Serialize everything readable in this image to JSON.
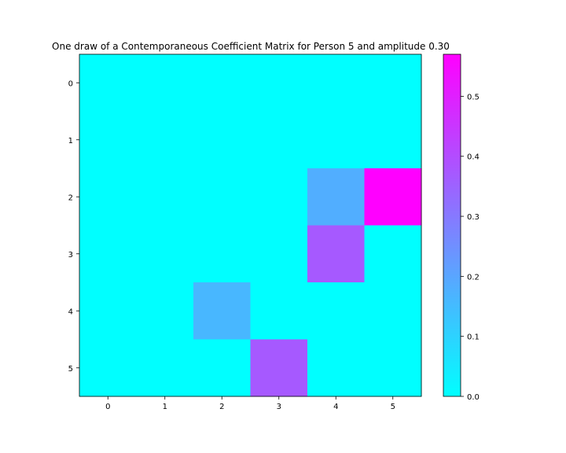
{
  "chart_data": {
    "type": "heatmap",
    "title": "One draw of a Contemporaneous Coefficient Matrix for Person 5 and amplitude 0.30",
    "xlabel": "",
    "ylabel": "",
    "x_categories": [
      "0",
      "1",
      "2",
      "3",
      "4",
      "5"
    ],
    "y_categories": [
      "0",
      "1",
      "2",
      "3",
      "4",
      "5"
    ],
    "values": [
      [
        0,
        0,
        0,
        0,
        0,
        0
      ],
      [
        0,
        0,
        0,
        0,
        0,
        0
      ],
      [
        0,
        0,
        0,
        0,
        0.18,
        0.57
      ],
      [
        0,
        0,
        0,
        0,
        0.37,
        0
      ],
      [
        0,
        0,
        0.16,
        0,
        0,
        0
      ],
      [
        0,
        0,
        0,
        0.37,
        0,
        0
      ]
    ],
    "colormap": "cool",
    "colorbar": {
      "range": [
        0,
        0.57
      ],
      "ticks": [
        "0.0",
        "0.1",
        "0.2",
        "0.3",
        "0.4",
        "0.5"
      ]
    },
    "grid": false
  }
}
